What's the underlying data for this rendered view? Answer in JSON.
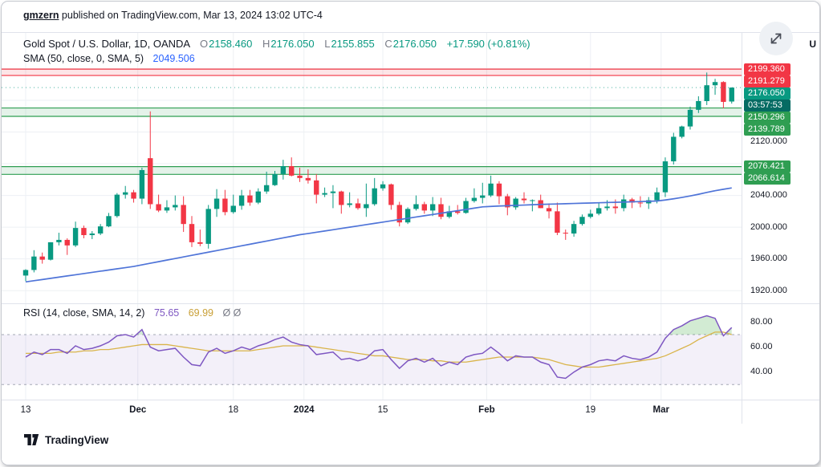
{
  "attribution": {
    "author": "gmzern",
    "text": " published on TradingView.com, Mar 13, 2024 13:02 UTC-4"
  },
  "corner_text": "U",
  "legend": {
    "symbol_title": "Gold Spot / U.S. Dollar, 1D, OANDA",
    "ohlc": {
      "o_label": "O",
      "o": "2158.460",
      "h_label": "H",
      "h": "2176.050",
      "l_label": "L",
      "l": "2155.855",
      "c_label": "C",
      "c": "2176.050",
      "change": "+17.590 (+0.81%)"
    },
    "sma_title": "SMA (50, close, 0, SMA, 5)",
    "sma_value": "2049.506"
  },
  "rsi_legend": {
    "title": "RSI (14, close, SMA, 14, 2)",
    "rsi_value": "75.65",
    "ma_value": "69.99",
    "empty_values": "Ø Ø"
  },
  "price_scale": {
    "labels": [
      {
        "text": "2199.360",
        "value": 2199.36,
        "style": "red"
      },
      {
        "text": "2191.279",
        "value": 2191.279,
        "style": "red"
      },
      {
        "text": "2176.050",
        "value": 2176.05,
        "style": "last"
      },
      {
        "text": "03:57:53",
        "value": null,
        "style": "countdown"
      },
      {
        "text": "2150.296",
        "value": 2150.296,
        "style": "green"
      },
      {
        "text": "2139.789",
        "value": 2139.789,
        "style": "green"
      },
      {
        "text": "2120.000",
        "value": 2120,
        "style": "plain"
      },
      {
        "text": "2076.421",
        "value": 2076.421,
        "style": "green"
      },
      {
        "text": "2066.614",
        "value": 2066.614,
        "style": "green"
      },
      {
        "text": "2040.000",
        "value": 2040,
        "style": "plain"
      },
      {
        "text": "2000.000",
        "value": 2000,
        "style": "plain"
      },
      {
        "text": "1960.000",
        "value": 1960,
        "style": "plain"
      },
      {
        "text": "1920.000",
        "value": 1920,
        "style": "plain"
      }
    ]
  },
  "rsi_scale": {
    "labels": [
      {
        "text": "80.00",
        "value": 80
      },
      {
        "text": "60.00",
        "value": 60
      },
      {
        "text": "40.00",
        "value": 40
      }
    ]
  },
  "footer": {
    "brand": "TradingView"
  },
  "icons": {
    "expand": "expand-arrows-icon",
    "brand": "tradingview-logo-icon"
  },
  "colors": {
    "up": "#089981",
    "down": "#f23645",
    "grid": "#edf0f4",
    "zone_red": "#f23645",
    "zone_red_fill": "rgba(242,54,69,0.13)",
    "zone_green": "#2f9e52",
    "zone_green_fill": "rgba(47,158,82,0.13)",
    "rsi_band_fill": "rgba(126,87,194,0.09)",
    "rsi_band_line": "#8f94a3",
    "overbought_fill": "rgba(76,175,80,0.25)",
    "accent_blue": "#2962ff"
  },
  "chart_data": [
    {
      "type": "candlestick",
      "title": "Gold Spot / U.S. Dollar, 1D, OANDA",
      "last_price": 2176.05,
      "countdown": "03:57:53",
      "ylim": [
        1904,
        2246
      ],
      "y_grid": [
        1920,
        1960,
        2000,
        2040,
        2080,
        2120,
        2160,
        2200
      ],
      "x_ticks": [
        {
          "label": "13",
          "index": 0,
          "major": false
        },
        {
          "label": "Dec",
          "index": 13.5,
          "major": true
        },
        {
          "label": "18",
          "index": 25,
          "major": false
        },
        {
          "label": "2024",
          "index": 33.5,
          "major": true
        },
        {
          "label": "15",
          "index": 43,
          "major": false
        },
        {
          "label": "Feb",
          "index": 55.5,
          "major": true
        },
        {
          "label": "19",
          "index": 68,
          "major": false
        },
        {
          "label": "Mar",
          "index": 76.5,
          "major": true
        }
      ],
      "ohlc": [
        [
          1939,
          1947,
          1932,
          1946
        ],
        [
          1946,
          1971,
          1943,
          1963
        ],
        [
          1963,
          1968,
          1954,
          1959
        ],
        [
          1959,
          1981,
          1958,
          1981
        ],
        [
          1981,
          1993,
          1977,
          1984
        ],
        [
          1984,
          1986,
          1965,
          1977
        ],
        [
          1977,
          2007,
          1975,
          1999
        ],
        [
          1999,
          2002,
          1986,
          1990
        ],
        [
          1990,
          1995,
          1985,
          1992
        ],
        [
          1992,
          2004,
          1990,
          2001
        ],
        [
          2001,
          2018,
          2000,
          2014
        ],
        [
          2014,
          2043,
          2012,
          2041
        ],
        [
          2041,
          2052,
          2036,
          2044
        ],
        [
          2044,
          2047,
          2031,
          2036
        ],
        [
          2036,
          2075,
          2029,
          2072
        ],
        [
          2087,
          2146,
          2023,
          2029
        ],
        [
          2029,
          2041,
          2019,
          2021
        ],
        [
          2021,
          2034,
          2018,
          2025
        ],
        [
          2025,
          2040,
          2021,
          2028
        ],
        [
          2028,
          2039,
          1994,
          2004
        ],
        [
          2004,
          2014,
          1975,
          1981
        ],
        [
          1981,
          1997,
          1976,
          1979
        ],
        [
          1979,
          2028,
          1973,
          2023
        ],
        [
          2023,
          2048,
          2013,
          2036
        ],
        [
          2036,
          2047,
          2015,
          2019
        ],
        [
          2019,
          2041,
          2017,
          2027
        ],
        [
          2027,
          2047,
          2022,
          2040
        ],
        [
          2040,
          2047,
          2027,
          2031
        ],
        [
          2031,
          2049,
          2029,
          2045
        ],
        [
          2045,
          2070,
          2042,
          2053
        ],
        [
          2053,
          2071,
          2052,
          2067
        ],
        [
          2067,
          2085,
          2060,
          2077
        ],
        [
          2077,
          2088,
          2064,
          2065
        ],
        [
          2065,
          2075,
          2057,
          2062
        ],
        [
          2062,
          2073,
          2055,
          2059
        ],
        [
          2059,
          2067,
          2030,
          2041
        ],
        [
          2041,
          2050,
          2038,
          2043
        ],
        [
          2043,
          2053,
          2024,
          2045
        ],
        [
          2045,
          2046,
          2017,
          2028
        ],
        [
          2028,
          2044,
          2025,
          2030
        ],
        [
          2030,
          2036,
          2022,
          2024
        ],
        [
          2024,
          2055,
          2013,
          2029
        ],
        [
          2029,
          2062,
          2027,
          2049
        ],
        [
          2049,
          2058,
          2046,
          2054
        ],
        [
          2054,
          2055,
          2022,
          2028
        ],
        [
          2028,
          2032,
          2001,
          2006
        ],
        [
          2006,
          2025,
          2004,
          2023
        ],
        [
          2023,
          2040,
          2021,
          2029
        ],
        [
          2029,
          2032,
          2017,
          2021
        ],
        [
          2021,
          2038,
          2014,
          2029
        ],
        [
          2029,
          2037,
          2010,
          2013
        ],
        [
          2013,
          2027,
          2011,
          2020
        ],
        [
          2020,
          2028,
          2016,
          2018
        ],
        [
          2018,
          2037,
          2017,
          2033
        ],
        [
          2033,
          2049,
          2031,
          2037
        ],
        [
          2037,
          2056,
          2030,
          2040
        ],
        [
          2040,
          2065,
          2038,
          2055
        ],
        [
          2055,
          2058,
          2029,
          2039
        ],
        [
          2039,
          2042,
          2015,
          2025
        ],
        [
          2025,
          2038,
          2022,
          2036
        ],
        [
          2036,
          2044,
          2030,
          2034
        ],
        [
          2034,
          2035,
          2020,
          2034
        ],
        [
          2034,
          2041,
          2024,
          2024
        ],
        [
          2024,
          2030,
          2011,
          2020
        ],
        [
          2020,
          2031,
          1990,
          1993
        ],
        [
          1993,
          1997,
          1984,
          1992
        ],
        [
          1992,
          2008,
          1988,
          2004
        ],
        [
          2004,
          2016,
          2002,
          2013
        ],
        [
          2013,
          2022,
          2011,
          2017
        ],
        [
          2017,
          2031,
          2015,
          2024
        ],
        [
          2024,
          2034,
          2021,
          2026
        ],
        [
          2026,
          2035,
          2017,
          2024
        ],
        [
          2024,
          2041,
          2020,
          2035
        ],
        [
          2035,
          2037,
          2024,
          2031
        ],
        [
          2031,
          2039,
          2025,
          2030
        ],
        [
          2030,
          2038,
          2023,
          2034
        ],
        [
          2034,
          2050,
          2030,
          2044
        ],
        [
          2044,
          2088,
          2038,
          2083
        ],
        [
          2083,
          2119,
          2079,
          2114
        ],
        [
          2114,
          2128,
          2112,
          2127
        ],
        [
          2127,
          2152,
          2123,
          2148
        ],
        [
          2148,
          2165,
          2144,
          2159
        ],
        [
          2159,
          2195,
          2154,
          2179
        ],
        [
          2179,
          2187,
          2167,
          2183
        ],
        [
          2183,
          2184,
          2150,
          2158
        ],
        [
          2158.46,
          2176.05,
          2155.855,
          2176.05
        ]
      ],
      "overlays": {
        "sma50": {
          "name": "SMA 50",
          "color": "#4f74d8",
          "values": [
            1931,
            1932.5,
            1934,
            1935.5,
            1937,
            1938.5,
            1940,
            1941.5,
            1943,
            1944.5,
            1946,
            1947.5,
            1949,
            1950.5,
            1952.5,
            1954.5,
            1956.5,
            1958.5,
            1960.5,
            1962.5,
            1964.5,
            1966.5,
            1968.5,
            1970.5,
            1972.5,
            1974.5,
            1976.5,
            1978.5,
            1980.5,
            1982.5,
            1984.5,
            1986.5,
            1988.5,
            1990.5,
            1992,
            1993.6,
            1995.2,
            1996.8,
            1998.4,
            2000,
            2001.6,
            2003.2,
            2004.8,
            2006.4,
            2008,
            2009.6,
            2011.2,
            2012.8,
            2014.4,
            2016,
            2017.6,
            2019.2,
            2020.8,
            2022.4,
            2024,
            2025.6,
            2026.2,
            2026.7,
            2027.1,
            2027.5,
            2027.9,
            2028.3,
            2028.7,
            2029,
            2029.3,
            2029.6,
            2029.9,
            2030.2,
            2030.5,
            2030.8,
            2031.1,
            2031.4,
            2031.7,
            2032,
            2032.3,
            2032.6,
            2033,
            2034.3,
            2035.8,
            2037.5,
            2039.4,
            2041.5,
            2043.8,
            2046,
            2047.8,
            2049.5
          ]
        },
        "zones": [
          {
            "from": 2191.279,
            "to": 2199.36,
            "color": "red"
          },
          {
            "from": 2139.789,
            "to": 2150.296,
            "color": "green"
          },
          {
            "from": 2066.614,
            "to": 2076.421,
            "color": "green"
          }
        ]
      }
    },
    {
      "type": "line",
      "title": "RSI (14, close, SMA, 14, 2)",
      "ylim": [
        18,
        95
      ],
      "y_grid": [
        40,
        60,
        80
      ],
      "bands": {
        "upper": 70,
        "lower": 30
      },
      "series": [
        {
          "name": "RSI",
          "color": "#7e57c2",
          "values": [
            52,
            56,
            54,
            58,
            58,
            55,
            61,
            58,
            59,
            61,
            64,
            69,
            70,
            68,
            74,
            60,
            57,
            58,
            59,
            52,
            46,
            45,
            56,
            59,
            55,
            57,
            60,
            58,
            61,
            63,
            66,
            68,
            64,
            62,
            61,
            54,
            55,
            56,
            50,
            51,
            49,
            51,
            57,
            58,
            50,
            43,
            49,
            51,
            48,
            51,
            45,
            48,
            46,
            52,
            54,
            55,
            60,
            55,
            49,
            53,
            52,
            52,
            48,
            46,
            36,
            35,
            40,
            44,
            46,
            49,
            50,
            49,
            53,
            51,
            50,
            52,
            56,
            67,
            74,
            77,
            81,
            83,
            85,
            83,
            69,
            75.65
          ]
        },
        {
          "name": "RSI-based MA",
          "color": "#d9b44a",
          "values": [
            55,
            55,
            55,
            55,
            56,
            56,
            56,
            57,
            57,
            58,
            58,
            59,
            60,
            61,
            62,
            62,
            62,
            62,
            61,
            60,
            59,
            58,
            57,
            57,
            57,
            57,
            57,
            57,
            58,
            59,
            60,
            61,
            61,
            61,
            61,
            60,
            59,
            58,
            57,
            56,
            55,
            54,
            53,
            53,
            52,
            51,
            50,
            50,
            50,
            49,
            49,
            48,
            48,
            48,
            49,
            50,
            51,
            52,
            52,
            52,
            52,
            52,
            51,
            50,
            48,
            46,
            45,
            44,
            44,
            44,
            45,
            46,
            47,
            48,
            49,
            50,
            51,
            53,
            56,
            59,
            62,
            66,
            69,
            72,
            72,
            69.99
          ]
        }
      ]
    }
  ]
}
